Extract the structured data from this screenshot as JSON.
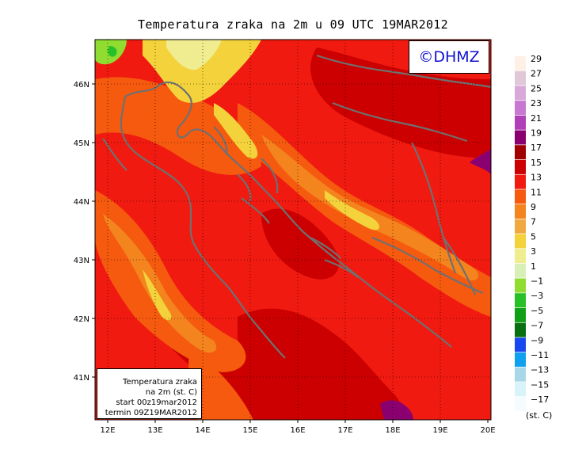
{
  "title": "Temperatura zraka na 2m u 09 UTC 19MAR2012",
  "logo": "©DHMZ",
  "info_box": {
    "line1": "Temperatura zraka",
    "line2": "na 2m (st. C)",
    "line3": "start 00z19mar2012",
    "line4": "termin 09Z19MAR2012"
  },
  "axes": {
    "lon_labels": [
      "12E",
      "13E",
      "14E",
      "15E",
      "16E",
      "17E",
      "18E",
      "19E",
      "20E"
    ],
    "lat_labels": [
      "46N",
      "45N",
      "44N",
      "43N",
      "42N",
      "41N"
    ],
    "lon_range": [
      11.7,
      20.0
    ],
    "lat_range": [
      40.25,
      46.75
    ]
  },
  "legend": {
    "unit": "(st. C)",
    "levels": [
      {
        "label": "29",
        "color": "#fff0e6"
      },
      {
        "label": "27",
        "color": "#e0c8d8"
      },
      {
        "label": "25",
        "color": "#d8a8d8"
      },
      {
        "label": "23",
        "color": "#c878d0"
      },
      {
        "label": "21",
        "color": "#b040b8"
      },
      {
        "label": "19",
        "color": "#8a0070"
      },
      {
        "label": "17",
        "color": "#a00000"
      },
      {
        "label": "15",
        "color": "#cc0000"
      },
      {
        "label": "13",
        "color": "#f01a10"
      },
      {
        "label": "11",
        "color": "#f55a0f"
      },
      {
        "label": "9",
        "color": "#f3841e"
      },
      {
        "label": "7",
        "color": "#f0a840"
      },
      {
        "label": "5",
        "color": "#f3d23c"
      },
      {
        "label": "3",
        "color": "#f0ec90"
      },
      {
        "label": "1",
        "color": "#d8f0b8"
      },
      {
        "label": "−1",
        "color": "#90dc30"
      },
      {
        "label": "−3",
        "color": "#28c028"
      },
      {
        "label": "−5",
        "color": "#10a018"
      },
      {
        "label": "−7",
        "color": "#087010"
      },
      {
        "label": "−9",
        "color": "#1848f0"
      },
      {
        "label": "−11",
        "color": "#10a0f0"
      },
      {
        "label": "−13",
        "color": "#a8d8e8"
      },
      {
        "label": "−15",
        "color": "#d8f4f8"
      },
      {
        "label": "−17",
        "color": "#f4fcff"
      }
    ]
  },
  "colors": {
    "coast": "#707070",
    "grid": "#000000"
  }
}
